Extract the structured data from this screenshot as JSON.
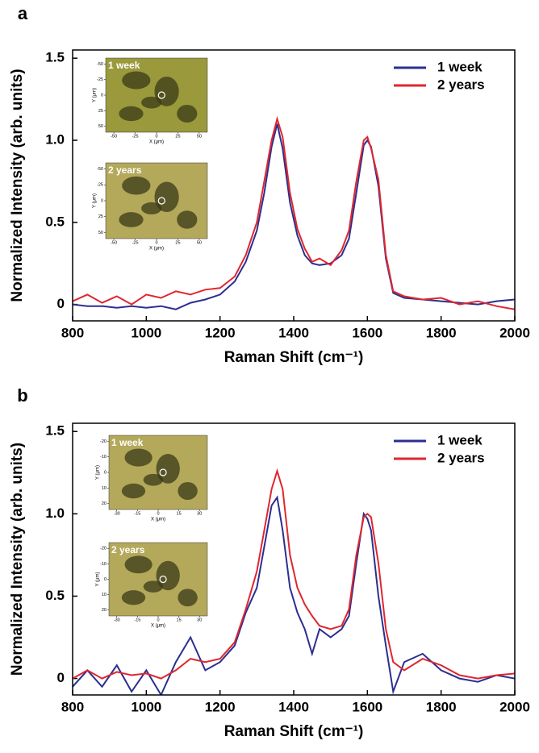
{
  "chart_data": [
    {
      "type": "line",
      "panel_label": "a",
      "xlabel": "Raman Shift (cm⁻¹)",
      "ylabel": "Normalized Intensity (arb. units)",
      "xlim": [
        800,
        2000
      ],
      "xticks": [
        800,
        1000,
        1200,
        1400,
        1600,
        1800,
        2000
      ],
      "ylim": [
        -0.1,
        1.55
      ],
      "yticks": [
        0,
        0.5,
        {
          "value": 1,
          "label": "1.0"
        },
        1.5
      ],
      "legend": "upper right",
      "x": [
        800,
        840,
        880,
        920,
        960,
        1000,
        1040,
        1080,
        1120,
        1160,
        1200,
        1240,
        1270,
        1300,
        1320,
        1340,
        1355,
        1370,
        1390,
        1410,
        1430,
        1450,
        1470,
        1500,
        1530,
        1550,
        1570,
        1590,
        1600,
        1610,
        1630,
        1650,
        1670,
        1700,
        1750,
        1800,
        1850,
        1900,
        1950,
        2000
      ],
      "series": [
        {
          "name": "1 week",
          "color": "#2b2f8f",
          "values": [
            0.0,
            -0.01,
            -0.01,
            -0.02,
            -0.01,
            -0.02,
            -0.01,
            -0.03,
            0.01,
            0.03,
            0.06,
            0.14,
            0.26,
            0.45,
            0.68,
            0.96,
            1.1,
            0.95,
            0.62,
            0.42,
            0.3,
            0.25,
            0.24,
            0.25,
            0.3,
            0.4,
            0.68,
            0.97,
            1.0,
            0.96,
            0.72,
            0.28,
            0.07,
            0.04,
            0.03,
            0.02,
            0.01,
            0.0,
            0.02,
            0.03
          ]
        },
        {
          "name": "2 years",
          "color": "#e0262f",
          "values": [
            0.02,
            0.06,
            0.01,
            0.05,
            0.0,
            0.06,
            0.04,
            0.08,
            0.06,
            0.09,
            0.1,
            0.17,
            0.3,
            0.5,
            0.75,
            1.0,
            1.13,
            1.02,
            0.68,
            0.46,
            0.34,
            0.26,
            0.28,
            0.24,
            0.33,
            0.45,
            0.75,
            1.0,
            1.02,
            0.95,
            0.76,
            0.3,
            0.08,
            0.05,
            0.03,
            0.04,
            0.0,
            0.02,
            -0.01,
            -0.03
          ]
        }
      ],
      "insets": [
        {
          "label": "1 week",
          "xlabel": "X (μm)",
          "ylabel": "Y (μm)",
          "xticks": [
            -50,
            -25,
            0,
            25,
            50
          ],
          "yticks": [
            -50,
            -25,
            0,
            25,
            50
          ]
        },
        {
          "label": "2 years",
          "xlabel": "X (μm)",
          "ylabel": "Y (μm)",
          "xticks": [
            -50,
            -25,
            0,
            25,
            50
          ],
          "yticks": [
            -50,
            -25,
            0,
            25,
            50
          ]
        }
      ]
    },
    {
      "type": "line",
      "panel_label": "b",
      "xlabel": "Raman Shift (cm⁻¹)",
      "ylabel": "Normalized Intensity (arb. units)",
      "xlim": [
        800,
        2000
      ],
      "xticks": [
        800,
        1000,
        1200,
        1400,
        1600,
        1800,
        2000
      ],
      "ylim": [
        -0.1,
        1.55
      ],
      "yticks": [
        0,
        0.5,
        {
          "value": 1,
          "label": "1.0"
        },
        1.5
      ],
      "legend": "upper right",
      "x": [
        800,
        840,
        880,
        920,
        960,
        1000,
        1040,
        1080,
        1120,
        1160,
        1200,
        1240,
        1270,
        1300,
        1320,
        1340,
        1355,
        1370,
        1390,
        1410,
        1430,
        1450,
        1470,
        1500,
        1530,
        1550,
        1570,
        1590,
        1600,
        1610,
        1630,
        1650,
        1670,
        1700,
        1750,
        1800,
        1850,
        1900,
        1950,
        2000
      ],
      "series": [
        {
          "name": "1 week",
          "color": "#2b2f8f",
          "values": [
            -0.05,
            0.05,
            -0.05,
            0.08,
            -0.08,
            0.05,
            -0.1,
            0.1,
            0.25,
            0.05,
            0.1,
            0.2,
            0.4,
            0.55,
            0.8,
            1.05,
            1.1,
            0.9,
            0.55,
            0.4,
            0.3,
            0.15,
            0.3,
            0.25,
            0.3,
            0.38,
            0.7,
            1.0,
            0.97,
            0.9,
            0.5,
            0.2,
            -0.08,
            0.1,
            0.15,
            0.05,
            0.0,
            -0.02,
            0.02,
            0.0
          ]
        },
        {
          "name": "2 years",
          "color": "#e0262f",
          "values": [
            0.0,
            0.05,
            0.0,
            0.04,
            0.02,
            0.03,
            0.0,
            0.05,
            0.12,
            0.1,
            0.12,
            0.22,
            0.42,
            0.65,
            0.9,
            1.15,
            1.26,
            1.15,
            0.75,
            0.55,
            0.45,
            0.38,
            0.32,
            0.3,
            0.32,
            0.42,
            0.75,
            0.98,
            1.0,
            0.98,
            0.7,
            0.3,
            0.1,
            0.05,
            0.12,
            0.08,
            0.02,
            0.0,
            0.02,
            0.03
          ]
        }
      ],
      "insets": [
        {
          "label": "1 week",
          "xlabel": "X (μm)",
          "ylabel": "Y (μm)",
          "xticks": [
            -30,
            -15,
            0,
            15,
            30
          ],
          "yticks": [
            -20,
            -10,
            0,
            10,
            20
          ]
        },
        {
          "label": "2 years",
          "xlabel": "X (μm)",
          "ylabel": "Y (μm)",
          "xticks": [
            -30,
            -15,
            0,
            15,
            30
          ],
          "yticks": [
            -20,
            -10,
            0,
            10,
            20
          ]
        }
      ]
    }
  ]
}
